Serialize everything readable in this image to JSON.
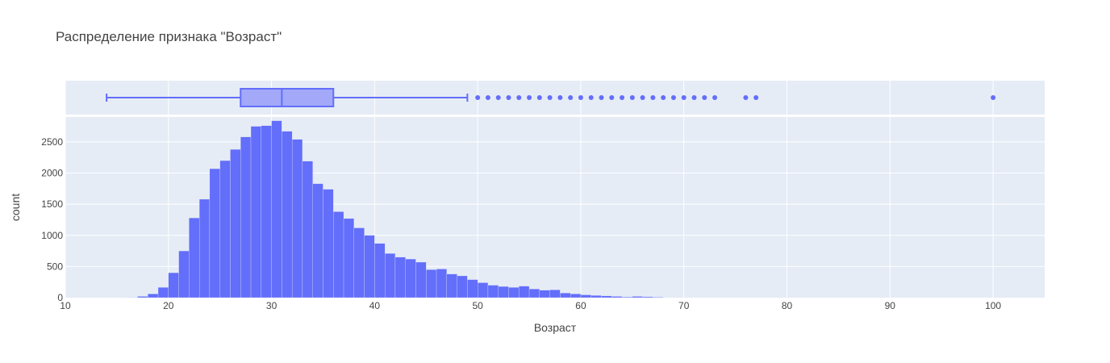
{
  "colors": {
    "bar": "#636efa",
    "box_fill": "#a3a9f8",
    "plot_bg": "#e5ecf6",
    "grid": "#ffffff",
    "text": "#444444"
  },
  "chart_data": {
    "type": "bar",
    "subtype": "histogram with marginal box plot",
    "title": "Распределение признака \"Возраст\"",
    "xlabel": "Возраст",
    "ylabel": "count",
    "xlim": [
      10,
      105
    ],
    "ylim": [
      0,
      2900
    ],
    "xticks": [
      10,
      20,
      30,
      40,
      50,
      60,
      70,
      80,
      90,
      100
    ],
    "xtick_labels": [
      "10",
      "20",
      "30",
      "40",
      "50",
      "60",
      "70",
      "80",
      "90",
      "100"
    ],
    "yticks": [
      0,
      500,
      1000,
      1500,
      2000,
      2500
    ],
    "ytick_labels": [
      "0",
      "500",
      "1000",
      "1500",
      "2000",
      "2500"
    ],
    "grid": true,
    "legend": "none",
    "histogram": {
      "bin_width": 1,
      "bin_starts": [
        16,
        17,
        18,
        19,
        20,
        21,
        22,
        23,
        24,
        25,
        26,
        27,
        28,
        29,
        30,
        31,
        32,
        33,
        34,
        35,
        36,
        37,
        38,
        39,
        40,
        41,
        42,
        43,
        44,
        45,
        46,
        47,
        48,
        49,
        50,
        51,
        52,
        53,
        54,
        55,
        56,
        57,
        58,
        59,
        60,
        61,
        62,
        63,
        64,
        65,
        66,
        67
      ],
      "counts": [
        5,
        20,
        60,
        165,
        400,
        750,
        1280,
        1580,
        2070,
        2200,
        2380,
        2580,
        2750,
        2760,
        2840,
        2670,
        2540,
        2190,
        1830,
        1740,
        1380,
        1270,
        1120,
        1000,
        870,
        710,
        650,
        620,
        570,
        450,
        460,
        380,
        350,
        290,
        240,
        200,
        180,
        165,
        185,
        140,
        120,
        125,
        75,
        60,
        45,
        35,
        28,
        20,
        12,
        20,
        14,
        8
      ]
    },
    "box": {
      "min": 14,
      "q1": 27,
      "median": 31,
      "q3": 36,
      "upper_fence": 49,
      "outliers": [
        50,
        51,
        52,
        53,
        54,
        55,
        56,
        57,
        58,
        59,
        60,
        61,
        62,
        63,
        64,
        65,
        66,
        67,
        68,
        69,
        70,
        71,
        72,
        73,
        76,
        77,
        100
      ]
    }
  }
}
